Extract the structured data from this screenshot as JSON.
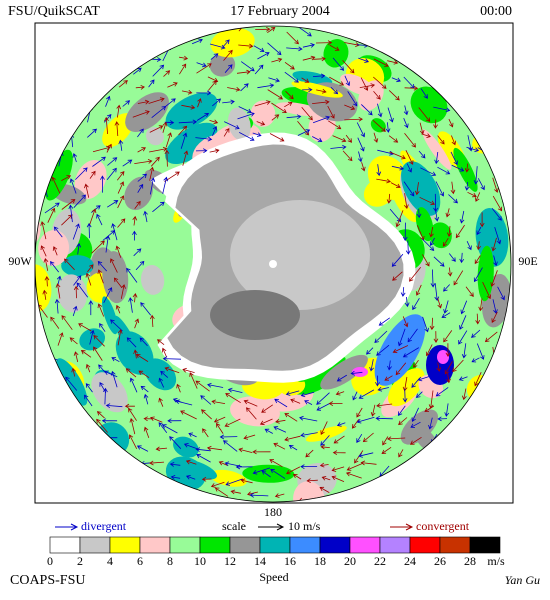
{
  "header": {
    "left": "FSU/QuikSCAT",
    "center": "17 February 2004",
    "right": "00:00"
  },
  "map": {
    "labels": {
      "west": "90W",
      "east": "90E",
      "south": "180"
    }
  },
  "legend": {
    "divergent": "divergent",
    "scale": "scale",
    "scale_value": "10 m/s",
    "convergent": "convergent",
    "unit": "m/s",
    "title": "Speed",
    "ticks": [
      0,
      2,
      4,
      6,
      8,
      10,
      12,
      14,
      16,
      18,
      20,
      22,
      24,
      26,
      28
    ],
    "colors": [
      "#ffffff",
      "#c8c8c8",
      "#ffff00",
      "#ffc8c8",
      "#98fb98",
      "#00e600",
      "#969696",
      "#00b4b4",
      "#3c8cff",
      "#0000c8",
      "#ff50ff",
      "#b482ff",
      "#ff0000",
      "#c83200",
      "#000000"
    ]
  },
  "footer": {
    "left": "COAPS-FSU",
    "right": "Yan Gu"
  }
}
